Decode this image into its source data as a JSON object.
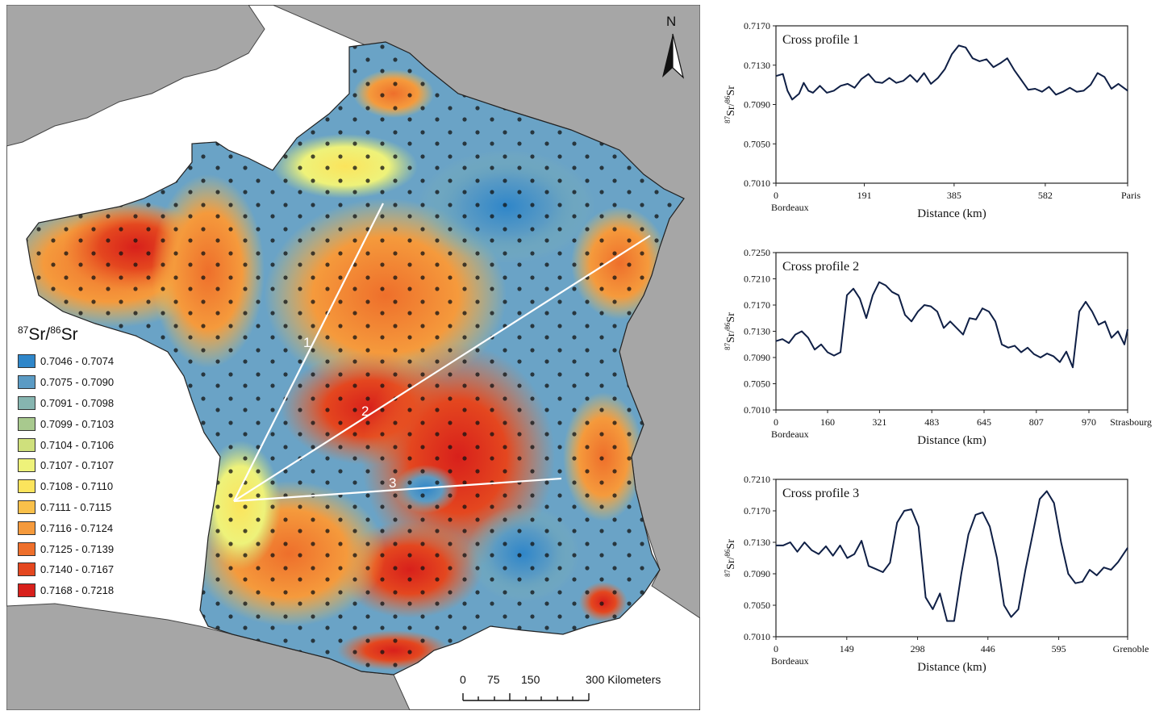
{
  "map": {
    "north_label": "N",
    "legend": {
      "title_parts": [
        "87",
        "Sr/",
        "86",
        "Sr"
      ],
      "classes": [
        {
          "label": "0.7046 - 0.7074",
          "color": "#2f86c9"
        },
        {
          "label": "0.7075 - 0.7090",
          "color": "#5b9bc4"
        },
        {
          "label": "0.7091 - 0.7098",
          "color": "#86b5b0"
        },
        {
          "label": "0.7099 - 0.7103",
          "color": "#a8c98e"
        },
        {
          "label": "0.7104 - 0.7106",
          "color": "#cfe07c"
        },
        {
          "label": "0.7107 - 0.7107",
          "color": "#eef27a"
        },
        {
          "label": "0.7108 - 0.7110",
          "color": "#fbe45c"
        },
        {
          "label": "0.7111 - 0.7115",
          "color": "#f9c04a"
        },
        {
          "label": "0.7116 - 0.7124",
          "color": "#f59a3c"
        },
        {
          "label": "0.7125 - 0.7139",
          "color": "#ee6f2b"
        },
        {
          "label": "0.7140 - 0.7167",
          "color": "#e4471f"
        },
        {
          "label": "0.7168 - 0.7218",
          "color": "#d8201b"
        }
      ]
    },
    "transect_labels": [
      "1",
      "2",
      "3"
    ],
    "scale_bar": {
      "ticks": [
        "0",
        "75",
        "150",
        "300 Kilometers"
      ]
    }
  },
  "profiles": [
    {
      "title": "Cross profile 1",
      "ylabel_parts": [
        "87",
        "Sr/",
        "86",
        "Sr"
      ],
      "yticks": [
        "0.7170",
        "0.7130",
        "0.7090",
        "0.7050",
        "0.7010"
      ],
      "ylim": [
        0.701,
        0.717
      ],
      "xticks": [
        "0",
        "191",
        "385",
        "582"
      ],
      "xtick_values": [
        0,
        191,
        385,
        582
      ],
      "xmax": 760,
      "start_label": "Bordeaux",
      "end_label": "Paris",
      "xlabel": "Distance (km)"
    },
    {
      "title": "Cross profile 2",
      "ylabel_parts": [
        "87",
        "Sr/",
        "86",
        "Sr"
      ],
      "yticks": [
        "0.7250",
        "0.7210",
        "0.7170",
        "0.7130",
        "0.7090",
        "0.7050",
        "0.7010"
      ],
      "ylim": [
        0.701,
        0.725
      ],
      "xticks": [
        "0",
        "160",
        "321",
        "483",
        "645",
        "807",
        "970"
      ],
      "xtick_values": [
        0,
        160,
        321,
        483,
        645,
        807,
        970
      ],
      "xmax": 1090,
      "start_label": "Bordeaux",
      "end_label": "Strasbourg",
      "xlabel": "Distance (km)"
    },
    {
      "title": "Cross profile 3",
      "ylabel_parts": [
        "87",
        "Sr/",
        "86",
        "Sr"
      ],
      "yticks": [
        "0.7210",
        "0.7170",
        "0.7130",
        "0.7090",
        "0.7050",
        "0.7010"
      ],
      "ylim": [
        0.701,
        0.721
      ],
      "xticks": [
        "0",
        "149",
        "298",
        "446",
        "595"
      ],
      "xtick_values": [
        0,
        149,
        298,
        446,
        595
      ],
      "xmax": 740,
      "start_label": "Bordeaux",
      "end_label": "Grenoble",
      "xlabel": "Distance (km)"
    }
  ],
  "chart_data": [
    {
      "type": "line",
      "title": "Cross profile 1",
      "xlabel": "Distance (km)",
      "ylabel": "87Sr/86Sr",
      "ylim": [
        0.701,
        0.717
      ],
      "series": [
        {
          "x": [
            0,
            15,
            25,
            35,
            50,
            60,
            70,
            80,
            95,
            110,
            125,
            140,
            155,
            170,
            185,
            200,
            215,
            230,
            245,
            260,
            275,
            290,
            305,
            320,
            335,
            350,
            365,
            380,
            395,
            410,
            425,
            440,
            455,
            470,
            485,
            500,
            515,
            530,
            545,
            560,
            575,
            590,
            605,
            620,
            635,
            650,
            665,
            680,
            695,
            710,
            725,
            740,
            760
          ],
          "y": [
            0.7119,
            0.7121,
            0.7104,
            0.7095,
            0.7101,
            0.7112,
            0.7104,
            0.7102,
            0.7109,
            0.7102,
            0.7104,
            0.7109,
            0.7111,
            0.7107,
            0.7116,
            0.7121,
            0.7113,
            0.7112,
            0.7117,
            0.7112,
            0.7114,
            0.712,
            0.7113,
            0.7122,
            0.7111,
            0.7117,
            0.7126,
            0.7141,
            0.715,
            0.7148,
            0.7137,
            0.7134,
            0.7136,
            0.7128,
            0.7132,
            0.7137,
            0.7125,
            0.7115,
            0.7105,
            0.7106,
            0.7103,
            0.7108,
            0.71,
            0.7103,
            0.7107,
            0.7103,
            0.7104,
            0.711,
            0.7122,
            0.7118,
            0.7106,
            0.7111,
            0.7104
          ]
        }
      ]
    },
    {
      "type": "line",
      "title": "Cross profile 2",
      "xlabel": "Distance (km)",
      "ylabel": "87Sr/86Sr",
      "ylim": [
        0.701,
        0.725
      ],
      "series": [
        {
          "x": [
            0,
            20,
            40,
            60,
            80,
            100,
            120,
            140,
            160,
            180,
            200,
            220,
            240,
            260,
            280,
            300,
            320,
            340,
            360,
            380,
            400,
            420,
            440,
            460,
            480,
            500,
            520,
            540,
            560,
            580,
            600,
            620,
            640,
            660,
            680,
            700,
            720,
            740,
            760,
            780,
            800,
            820,
            840,
            860,
            880,
            900,
            920,
            940,
            960,
            980,
            1000,
            1020,
            1040,
            1060,
            1080,
            1090
          ],
          "y": [
            0.7115,
            0.7118,
            0.7112,
            0.7125,
            0.713,
            0.712,
            0.7102,
            0.711,
            0.7098,
            0.7093,
            0.7098,
            0.7185,
            0.7195,
            0.718,
            0.715,
            0.7185,
            0.7205,
            0.72,
            0.719,
            0.7185,
            0.7155,
            0.7145,
            0.716,
            0.717,
            0.7168,
            0.716,
            0.7135,
            0.7145,
            0.7135,
            0.7125,
            0.715,
            0.7148,
            0.7165,
            0.716,
            0.7145,
            0.711,
            0.7105,
            0.7108,
            0.7098,
            0.7105,
            0.7095,
            0.709,
            0.7096,
            0.7092,
            0.7083,
            0.7099,
            0.7075,
            0.716,
            0.7175,
            0.716,
            0.714,
            0.7145,
            0.712,
            0.713,
            0.711,
            0.7133
          ]
        }
      ]
    },
    {
      "type": "line",
      "title": "Cross profile 3",
      "xlabel": "Distance (km)",
      "ylabel": "87Sr/86Sr",
      "ylim": [
        0.701,
        0.721
      ],
      "series": [
        {
          "x": [
            0,
            15,
            30,
            45,
            60,
            75,
            90,
            105,
            120,
            135,
            150,
            165,
            180,
            195,
            210,
            225,
            240,
            255,
            270,
            285,
            300,
            315,
            330,
            345,
            360,
            375,
            390,
            405,
            420,
            435,
            450,
            465,
            480,
            495,
            510,
            525,
            540,
            555,
            570,
            585,
            600,
            615,
            630,
            645,
            660,
            675,
            690,
            705,
            720,
            740
          ],
          "y": [
            0.7126,
            0.7126,
            0.713,
            0.7118,
            0.713,
            0.712,
            0.7115,
            0.7125,
            0.7113,
            0.7126,
            0.711,
            0.7115,
            0.7132,
            0.71,
            0.7096,
            0.7092,
            0.7104,
            0.7155,
            0.717,
            0.7172,
            0.715,
            0.706,
            0.7045,
            0.7065,
            0.703,
            0.703,
            0.709,
            0.714,
            0.7165,
            0.7168,
            0.715,
            0.711,
            0.705,
            0.7035,
            0.7045,
            0.7095,
            0.714,
            0.7185,
            0.7195,
            0.718,
            0.713,
            0.709,
            0.7078,
            0.708,
            0.7095,
            0.7088,
            0.7098,
            0.7095,
            0.7105,
            0.7123
          ]
        }
      ]
    }
  ]
}
